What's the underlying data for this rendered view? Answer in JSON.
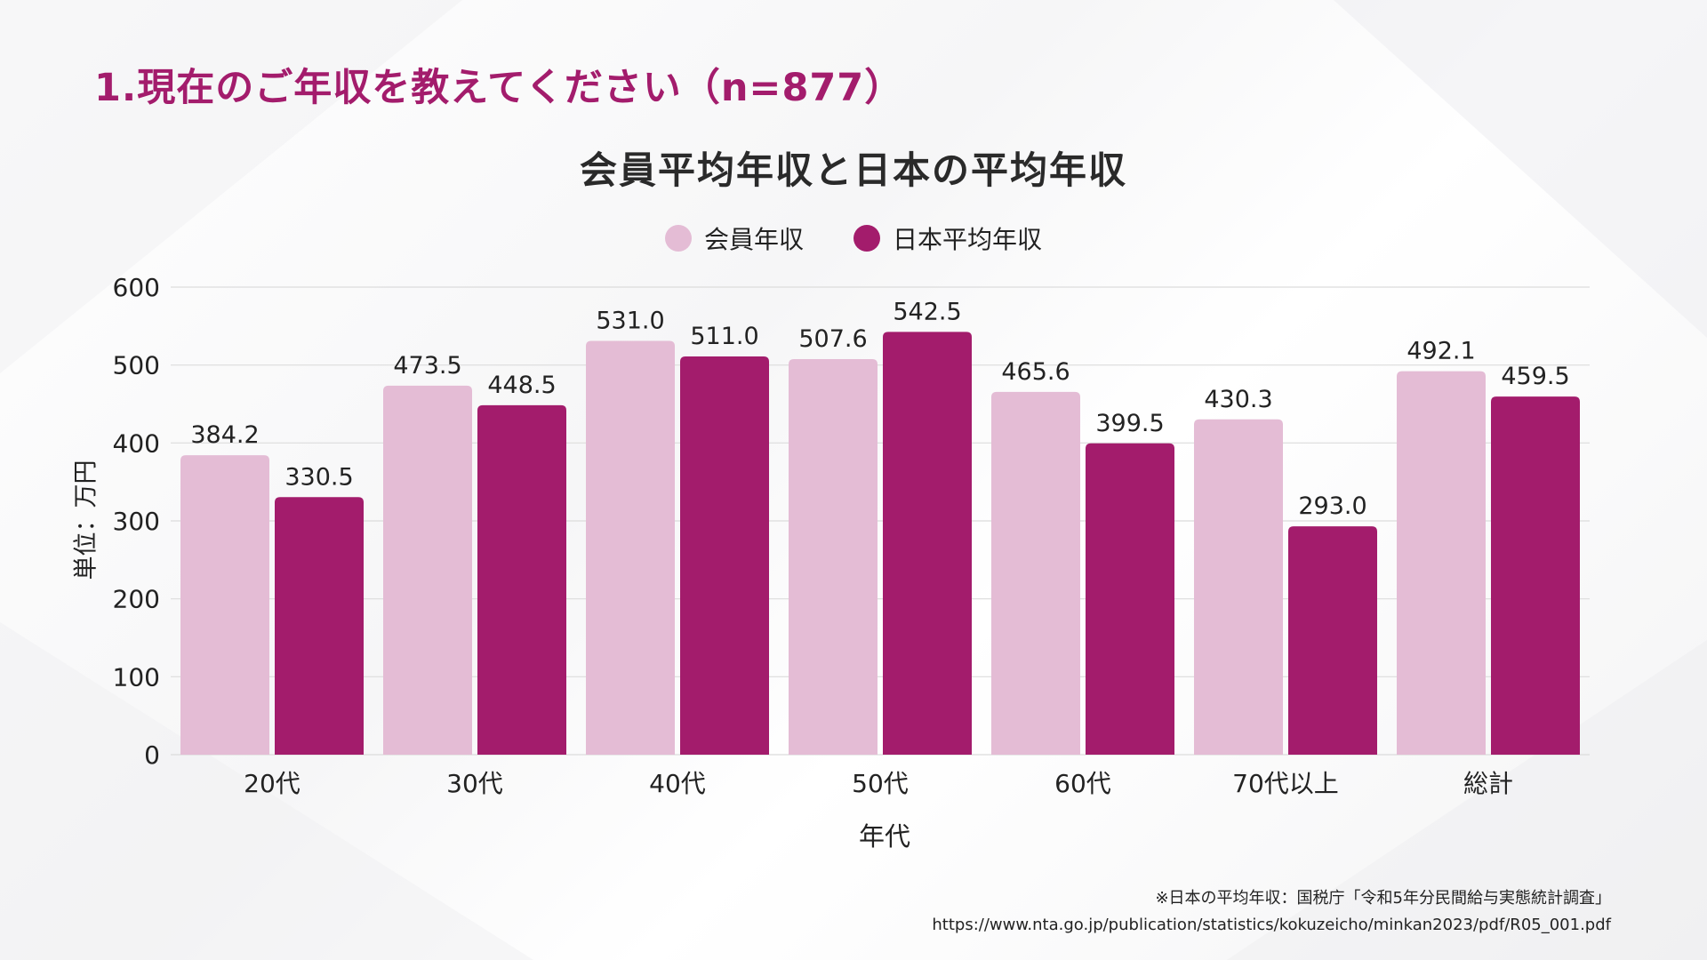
{
  "page": {
    "title": "1.現在のご年収を教えてください（n=877）"
  },
  "colors": {
    "accent": "#a31c6c",
    "member": "#e4bcd5",
    "japan": "#a31c6c"
  },
  "chart_data": {
    "type": "bar",
    "title": "会員平均年収と日本の平均年収",
    "categories": [
      "20代",
      "30代",
      "40代",
      "50代",
      "60代",
      "70代以上",
      "総計"
    ],
    "series": [
      {
        "name": "会員年収",
        "color": "#e4bcd5",
        "values": [
          384.2,
          473.5,
          531.0,
          507.6,
          465.6,
          430.3,
          492.1
        ]
      },
      {
        "name": "日本平均年収",
        "color": "#a31c6c",
        "values": [
          330.5,
          448.5,
          511.0,
          542.5,
          399.5,
          293.0,
          459.5
        ]
      }
    ],
    "xlabel": "年代",
    "ylabel": "単位：万円",
    "ylim": [
      0,
      600
    ],
    "yticks": [
      0,
      100,
      200,
      300,
      400,
      500,
      600
    ],
    "grid": true,
    "legend": "top-center"
  },
  "footnote": {
    "line1": "※日本の平均年収：国税庁「令和5年分民間給与実態統計調査」",
    "line2": "https://www.nta.go.jp/publication/statistics/kokuzeicho/minkan2023/pdf/R05_001.pdf"
  }
}
